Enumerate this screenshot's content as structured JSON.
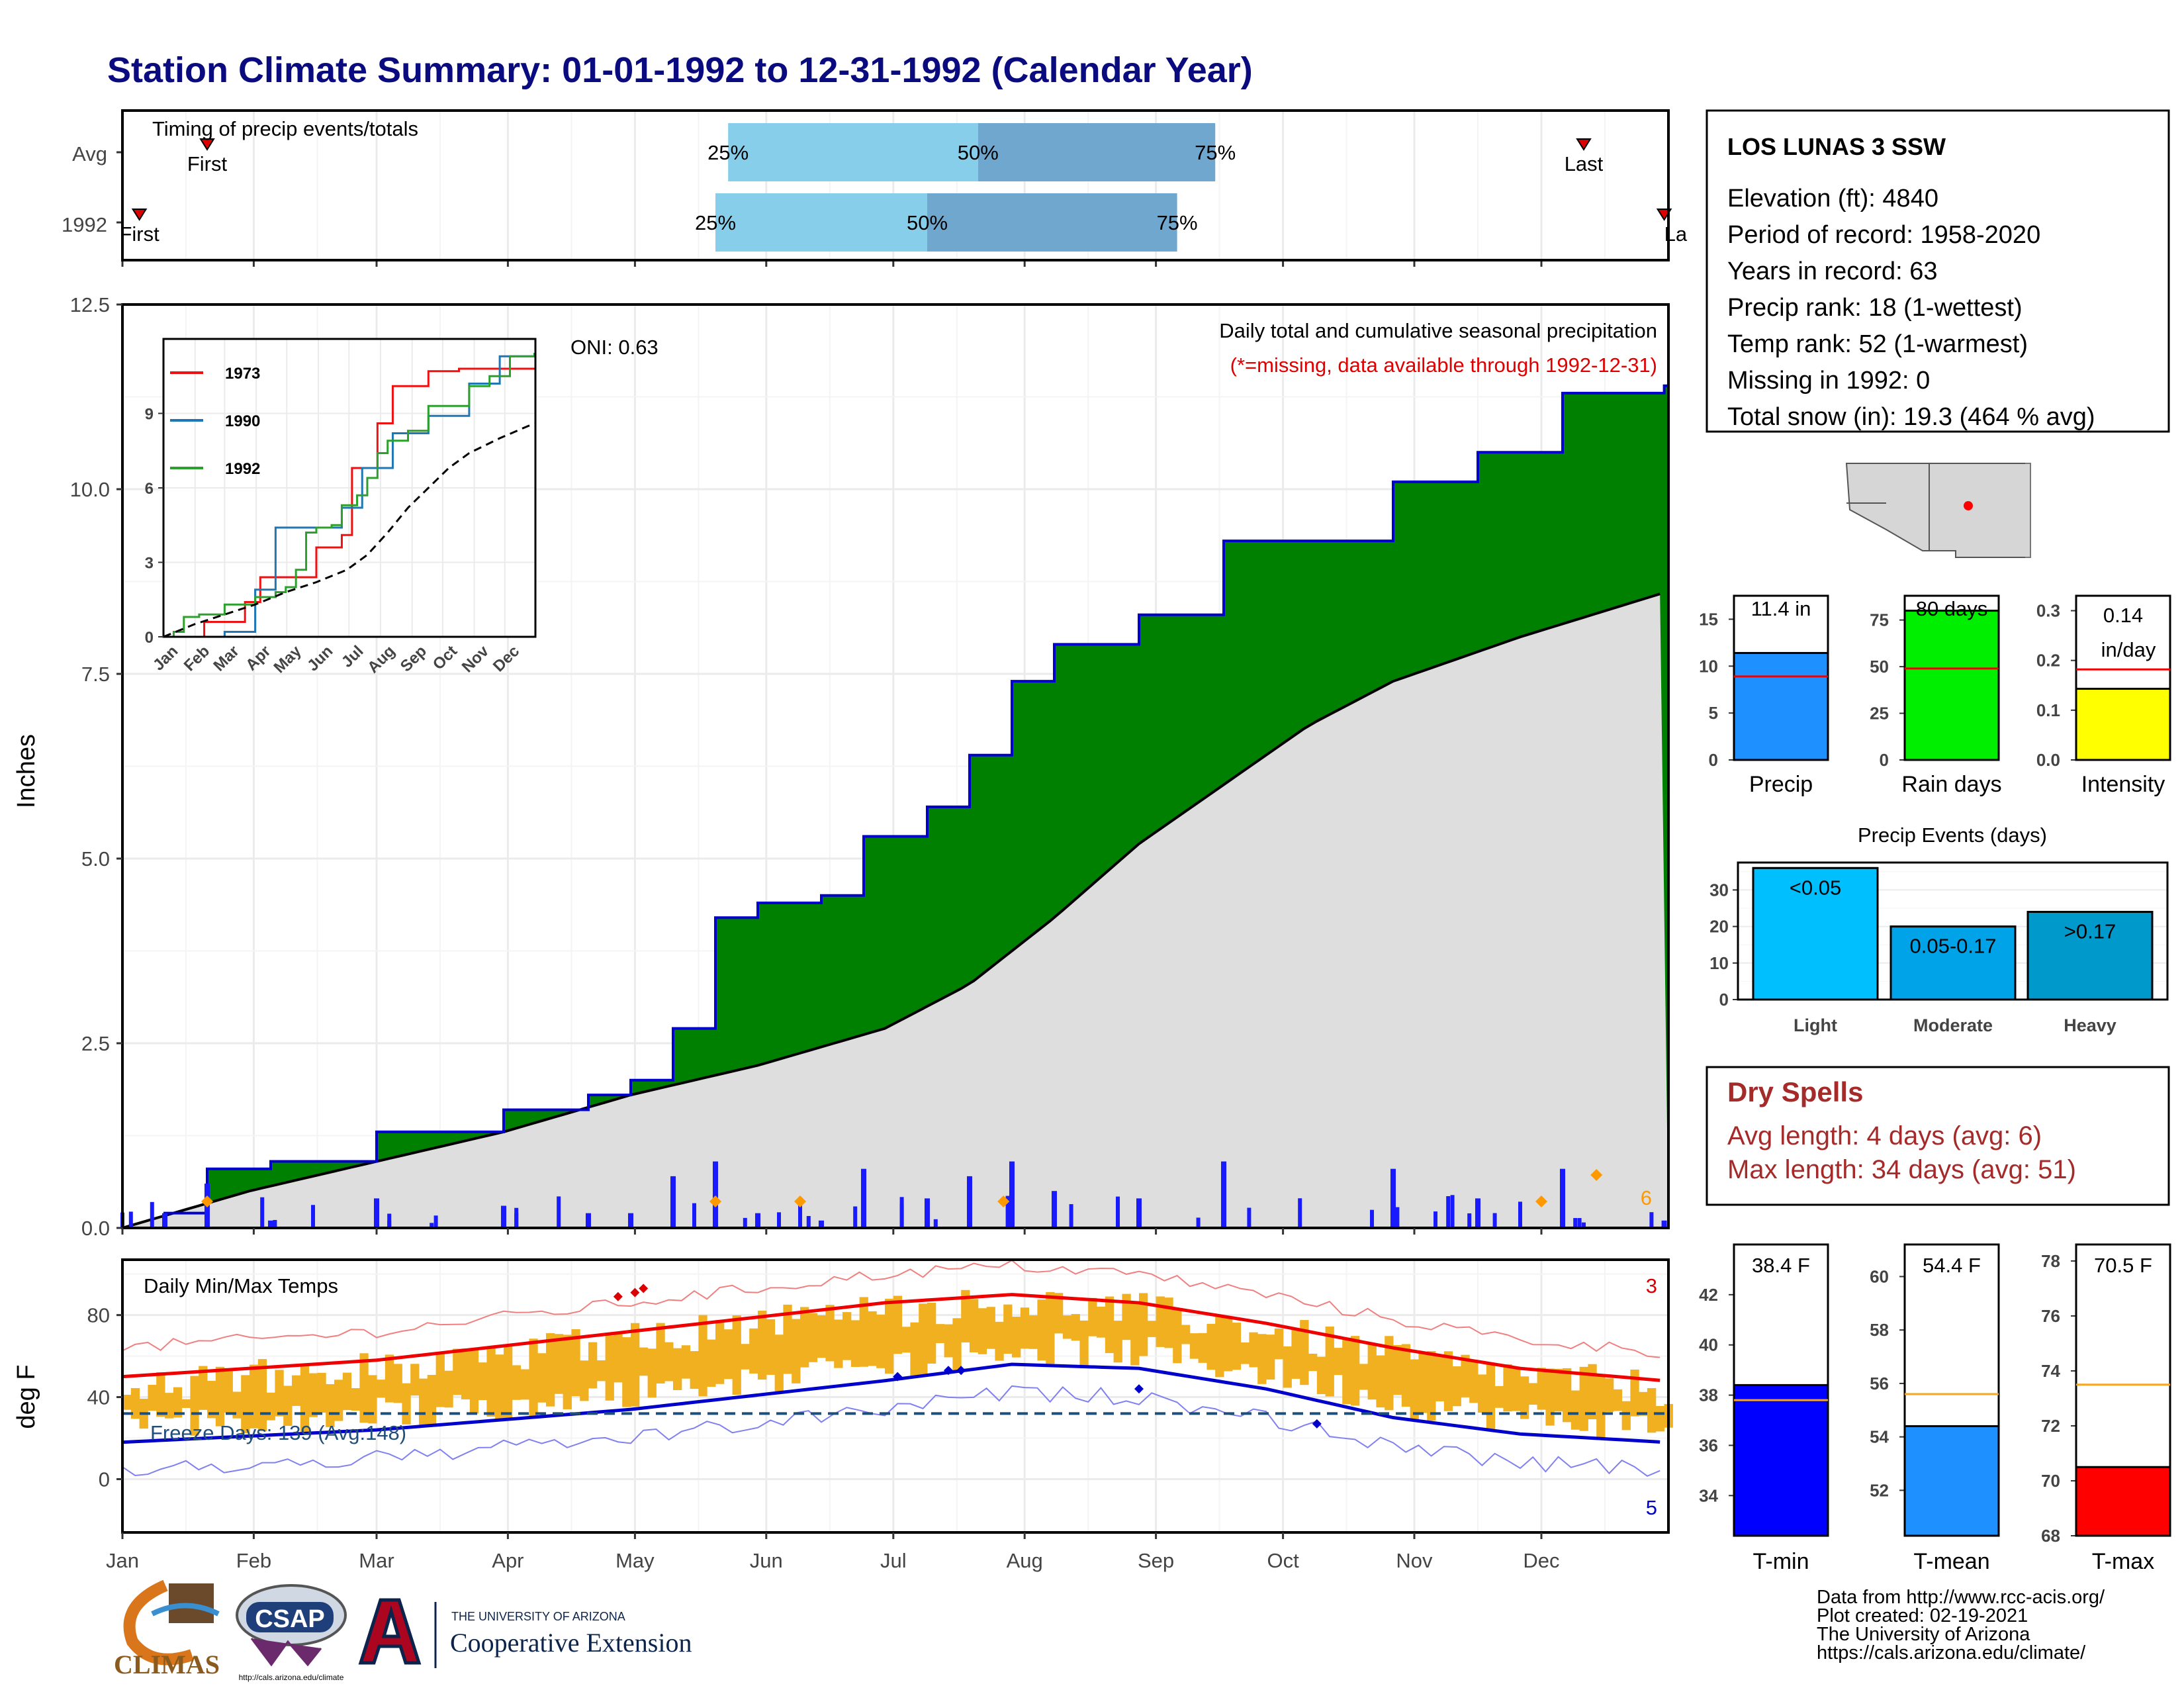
{
  "title": "Station Climate Summary: 01-01-1992 to 12-31-1992 (Calendar Year)",
  "timing": {
    "heading": "Timing of precip events/totals",
    "rows": [
      {
        "label": "Avg",
        "first_day": 20,
        "p25_day": 143,
        "p50_day": 202,
        "p75_day": 258,
        "last_day": 345
      },
      {
        "label": "1992",
        "first_day": 4,
        "p25_day": 140,
        "p50_day": 190,
        "p75_day": 249,
        "last_day": 364
      }
    ],
    "first_label": "First",
    "last_label": "Last",
    "last_label_cut": "La",
    "p25_label": "25%",
    "p50_label": "50%",
    "p75_label": "75%",
    "colors": {
      "light": "#87ceeb",
      "dark": "#6fa7cf",
      "marker": "#dd0000"
    }
  },
  "months": [
    "Jan",
    "Feb",
    "Mar",
    "Apr",
    "May",
    "Jun",
    "Jul",
    "Aug",
    "Sep",
    "Oct",
    "Nov",
    "Dec"
  ],
  "month_start_days": [
    0,
    31,
    60,
    91,
    121,
    152,
    182,
    213,
    244,
    274,
    305,
    335
  ],
  "precip_panel": {
    "ylabel": "Inches",
    "yticks": [
      "0.0",
      "2.5",
      "5.0",
      "7.5",
      "10.0",
      "12.5"
    ],
    "ymax": 12.5,
    "oni": "ONI: 0.63",
    "legend_title": "Daily total and cumulative seasonal precipitation",
    "missing_note": "(*=missing, data available through 1992-12-31)",
    "snow_count": "6",
    "colors": {
      "cum_fill": "#008000",
      "cum_line": "#0000cc",
      "avg_fill": "#dedede",
      "avg_line": "#000000",
      "daily_bar": "#1a1aff",
      "marker": "#ff9900"
    }
  },
  "inset": {
    "series": [
      {
        "name": "1973",
        "color": "#ee1111"
      },
      {
        "name": "1990",
        "color": "#1f77b4"
      },
      {
        "name": "1992",
        "color": "#2ca02c"
      }
    ],
    "yticks": [
      "0",
      "3",
      "6",
      "9"
    ],
    "months": [
      "Jan",
      "Feb",
      "Mar",
      "Apr",
      "May",
      "Jun",
      "Jul",
      "Aug",
      "Sep",
      "Oct",
      "Nov",
      "Dec"
    ]
  },
  "temp_panel": {
    "ylabel": "deg F",
    "yticks": [
      "0",
      "40",
      "80"
    ],
    "title": "Daily Min/Max Temps",
    "freeze": "Freeze Days: 139 (Avg:148)",
    "record_high_count": "3",
    "record_low_count": "5",
    "colors": {
      "bar": "#f0b020",
      "max": "#ee0000",
      "min": "#0000cc",
      "freeze": "#1f4e79"
    }
  },
  "station": {
    "name": "LOS LUNAS 3 SSW",
    "lines": [
      "Elevation (ft): 4840",
      "Period of record: 1958-2020",
      "Years in record: 63",
      "Precip rank: 18 (1-wettest)",
      "Temp rank: 52 (1-warmest)",
      "Missing in 1992: 0",
      "Total snow (in): 19.3 (464 % avg)"
    ]
  },
  "summary_bars": [
    {
      "label": "Precip",
      "value_label": "11.4 in",
      "value": 11.4,
      "avg": 8.9,
      "ymax": 17.5,
      "yticks": [
        "0",
        "5",
        "10",
        "15"
      ],
      "tick_values": [
        0,
        5,
        10,
        15
      ],
      "color": "#1e90ff"
    },
    {
      "label": "Rain days",
      "value_label": "80 days",
      "value": 80,
      "avg": 49,
      "ymax": 88,
      "yticks": [
        "0",
        "25",
        "50",
        "75"
      ],
      "tick_values": [
        0,
        25,
        50,
        75
      ],
      "color": "#00ee00"
    },
    {
      "label": "Intensity",
      "value_label": "0.14 in/day",
      "value_line1": "0.14",
      "value_line2": "in/day",
      "value": 0.143,
      "avg": 0.182,
      "ymax": 0.33,
      "yticks": [
        "0.0",
        "0.1",
        "0.2",
        "0.3"
      ],
      "tick_values": [
        0,
        0.1,
        0.2,
        0.3
      ],
      "color": "#ffff00"
    }
  ],
  "precip_events": {
    "title": "Precip Events (days)",
    "yticks": [
      "0",
      "10",
      "20",
      "30"
    ],
    "bars": [
      {
        "category": "Light",
        "label": "<0.05",
        "value": 36,
        "color": "#00bfff"
      },
      {
        "category": "Moderate",
        "label": "0.05-0.17",
        "value": 20,
        "color": "#00a2e8"
      },
      {
        "category": "Heavy",
        "label": ">0.17",
        "value": 24,
        "color": "#0099cc"
      }
    ]
  },
  "dry_spells": {
    "title": "Dry Spells",
    "avg_length": "Avg length: 4 days (avg: 6)",
    "max_length": "Max length: 34 days (avg: 51)",
    "color": "#a52a2a"
  },
  "temp_bars": [
    {
      "label": "T-min",
      "value_label": "38.4 F",
      "value": 38.4,
      "avg": 37.8,
      "ymin": 32.4,
      "ymax": 44,
      "yticks": [
        "34",
        "36",
        "38",
        "40",
        "42"
      ],
      "tick_values": [
        34,
        36,
        38,
        40,
        42
      ],
      "color": "#0000ff"
    },
    {
      "label": "T-mean",
      "value_label": "54.4 F",
      "value": 54.4,
      "avg": 55.6,
      "ymin": 50.3,
      "ymax": 61.2,
      "yticks": [
        "52",
        "54",
        "56",
        "58",
        "60"
      ],
      "tick_values": [
        52,
        54,
        56,
        58,
        60
      ],
      "color": "#1e90ff"
    },
    {
      "label": "T-max",
      "value_label": "70.5 F",
      "value": 70.5,
      "avg": 73.5,
      "ymin": 68,
      "ymax": 78.6,
      "yticks": [
        "68",
        "70",
        "72",
        "74",
        "76",
        "78"
      ],
      "tick_values": [
        68,
        70,
        72,
        74,
        76,
        78
      ],
      "color": "#ff0000"
    }
  ],
  "footer": {
    "lines": [
      "Data from http://www.rcc-acis.org/",
      "Plot created: 02-19-2021",
      "The University of Arizona",
      "https://cals.arizona.edu/climate/"
    ],
    "climas": "CLIMAS",
    "csap": "CSAP",
    "csap_url": "http://cals.arizona.edu/climate",
    "ua_top": "THE UNIVERSITY OF ARIZONA",
    "ua_bottom": "Cooperative Extension"
  },
  "chart_data": [
    {
      "type": "line",
      "title": "Daily total and cumulative seasonal precipitation",
      "ylabel": "Inches",
      "ylim": [
        0,
        12.5
      ],
      "series": [
        {
          "name": "1992 cumulative",
          "x": [
            0,
            10,
            20,
            35,
            60,
            90,
            110,
            120,
            130,
            140,
            150,
            165,
            175,
            190,
            200,
            210,
            220,
            240,
            260,
            270,
            300,
            320,
            340,
            364
          ],
          "values": [
            0,
            0.2,
            0.8,
            0.9,
            1.3,
            1.6,
            1.8,
            2.0,
            2.7,
            4.2,
            4.4,
            4.5,
            5.3,
            5.7,
            6.4,
            7.4,
            7.9,
            8.3,
            9.3,
            9.3,
            10.1,
            10.5,
            11.3,
            11.4
          ]
        },
        {
          "name": "average cumulative",
          "x": [
            0,
            30,
            60,
            90,
            120,
            150,
            180,
            200,
            220,
            240,
            260,
            280,
            300,
            330,
            364
          ],
          "values": [
            0,
            0.5,
            0.9,
            1.3,
            1.8,
            2.2,
            2.7,
            3.3,
            4.2,
            5.2,
            6.0,
            6.8,
            7.4,
            8.0,
            8.6
          ]
        }
      ]
    },
    {
      "type": "line",
      "title": "Daily Min/Max Temps",
      "ylabel": "deg F",
      "series": [
        {
          "name": "avg max",
          "x": [
            0,
            60,
            120,
            180,
            210,
            240,
            270,
            300,
            330,
            364
          ],
          "values": [
            50,
            58,
            72,
            86,
            90,
            86,
            76,
            64,
            54,
            48
          ]
        },
        {
          "name": "avg min",
          "x": [
            0,
            60,
            120,
            180,
            210,
            240,
            270,
            300,
            330,
            364
          ],
          "values": [
            18,
            24,
            34,
            48,
            56,
            54,
            44,
            30,
            22,
            18
          ]
        },
        {
          "name": "freeze line",
          "x": [
            0,
            364
          ],
          "values": [
            32,
            32
          ]
        }
      ]
    },
    {
      "type": "bar",
      "title": "Precip Events (days)",
      "categories": [
        "Light",
        "Moderate",
        "Heavy"
      ],
      "values": [
        36,
        20,
        24
      ]
    }
  ]
}
